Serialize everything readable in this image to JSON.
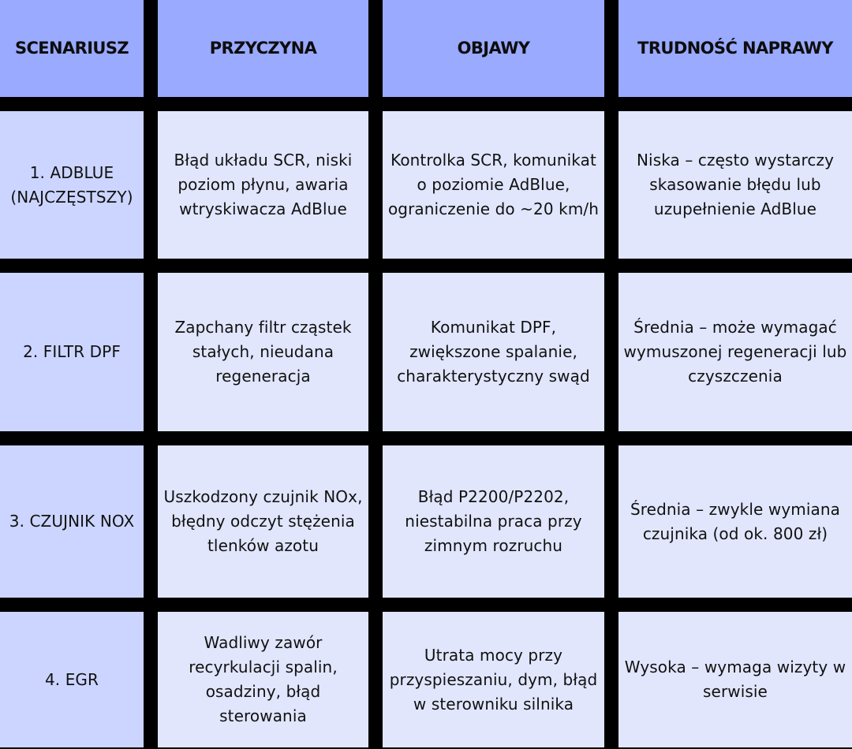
{
  "table": {
    "headers": [
      "SCENARIUSZ",
      "PRZYCZYNA",
      "OBJAWY",
      "TRUDNOŚĆ NAPRAWY"
    ],
    "rows": [
      {
        "scenario": "1. ADBLUE (NAJCZĘSTSZY)",
        "cause": "Błąd układu SCR, niski poziom płynu, awaria wtryskiwacza AdBlue",
        "symptoms": "Kontrolka SCR, komunikat o poziomie AdBlue, ograniczenie do ~20 km/h",
        "difficulty": "Niska – często wystarczy skasowanie błędu lub uzupełnienie AdBlue"
      },
      {
        "scenario": "2. FILTR DPF",
        "cause": "Zapchany filtr cząstek stałych, nieudana regeneracja",
        "symptoms": "Komunikat DPF, zwiększone spalanie, charakterystyczny swąd",
        "difficulty": "Średnia – może wymagać wymuszonej regeneracji lub czyszczenia"
      },
      {
        "scenario": "3. CZUJNIK NOX",
        "cause": "Uszkodzony czujnik NOx, błędny odczyt stężenia tlenków azotu",
        "symptoms": "Błąd P2200/P2202, niestabilna praca przy zimnym rozruchu",
        "difficulty": "Średnia – zwykle wymiana czujnika (od ok. 800 zł)"
      },
      {
        "scenario": "4. EGR",
        "cause": "Wadliwy zawór recyrkulacji spalin, osadziny, błąd sterowania",
        "symptoms": "Utrata mocy przy przyspieszaniu, dym, błąd w sterowniku silnika",
        "difficulty": "Wysoka – wymaga wizyty w serwisie"
      }
    ]
  },
  "colors": {
    "header_bg": "#99aaff",
    "scenario_bg": "#ccd5ff",
    "cell_bg": "#e1e6fd",
    "grid_lines": "#000000",
    "text": "#111111"
  }
}
